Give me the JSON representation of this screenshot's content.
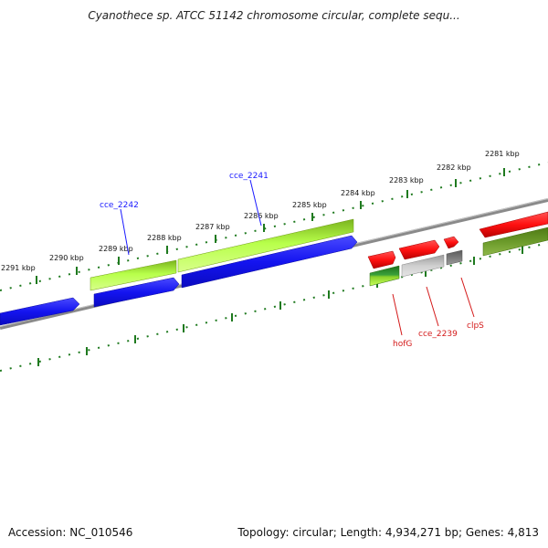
{
  "title": "Cyanothece sp. ATCC 51142 chromosome circular, complete sequ...",
  "footer": {
    "accession": "Accession: NC_010546",
    "topology": "Topology: circular; Length: 4,934,271 bp; Genes: 4,813"
  },
  "colors": {
    "forward_blue": "#1c1cff",
    "lime": "#aaff22",
    "olive": "#5f8a1f",
    "red": "#ff1a1a",
    "gray": "#bdbdbd",
    "dark_gray": "#6d6d6d",
    "backbone": "#8a8a8a",
    "tick_green": "#1f7a1f",
    "label_blue": "#1a1aff",
    "label_red": "#d41a1a"
  },
  "tick_labels": [
    "2291 kbp",
    "2290 kbp",
    "2289 kbp",
    "2288 kbp",
    "2287 kbp",
    "2286 kbp",
    "2285 kbp",
    "2284 kbp",
    "2283 kbp",
    "2282 kbp",
    "2281 kbp"
  ],
  "gene_labels": {
    "top": [
      "cce_2242",
      "cce_2241"
    ],
    "bottom": [
      "hofG",
      "cce_2239",
      "clpS"
    ]
  }
}
